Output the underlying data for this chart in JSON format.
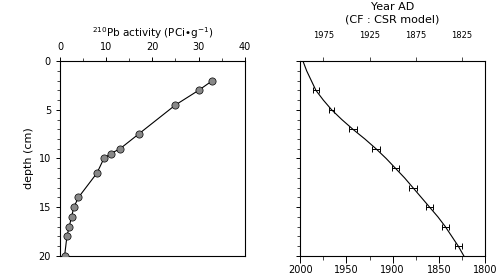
{
  "left_title": "$^{210}$Pb activity (PCi•g$^{-1}$)",
  "right_title": "Year AD\n(CF : CSR model)",
  "ylabel": "depth (cm)",
  "pb_depth": [
    2,
    3,
    4.5,
    7.5,
    9,
    9.5,
    10,
    11.5,
    14,
    15,
    16,
    17,
    18,
    20
  ],
  "pb_activity": [
    33,
    30,
    25,
    17,
    13,
    11,
    9.5,
    8,
    4,
    3,
    2.5,
    2,
    1.5,
    1
  ],
  "pb_xlim": [
    0,
    40
  ],
  "pb_xticks": [
    0,
    10,
    20,
    30,
    40
  ],
  "depth_ylim": [
    20,
    0
  ],
  "depth_yticks": [
    0,
    5,
    10,
    15,
    20
  ],
  "marker_color": "#888888",
  "marker_size": 7,
  "age_curve_depth": [
    0,
    1,
    2,
    3,
    4,
    5,
    6,
    7,
    8,
    9,
    10,
    11,
    12,
    13,
    14,
    15,
    16,
    17,
    18,
    19,
    20
  ],
  "age_curve_year": [
    1997,
    1993,
    1988,
    1983,
    1975,
    1966,
    1955,
    1943,
    1930,
    1918,
    1907,
    1897,
    1887,
    1878,
    1869,
    1860,
    1851,
    1843,
    1836,
    1829,
    1823
  ],
  "age_points_depth": [
    3,
    5,
    7,
    9,
    11,
    13,
    15,
    17,
    19
  ],
  "age_points_year": [
    1983,
    1966,
    1943,
    1918,
    1897,
    1878,
    1860,
    1843,
    1829
  ],
  "age_xerr": [
    3,
    3,
    4,
    4,
    4,
    4,
    4,
    4,
    4
  ],
  "age_xlim": [
    2000,
    1800
  ],
  "age_xticks_outer": [
    2000,
    1950,
    1900,
    1850,
    1800
  ],
  "age_xticks_inner": [
    1975,
    1925,
    1875,
    1825
  ],
  "line_color": "#000000",
  "bg_color": "#ffffff"
}
